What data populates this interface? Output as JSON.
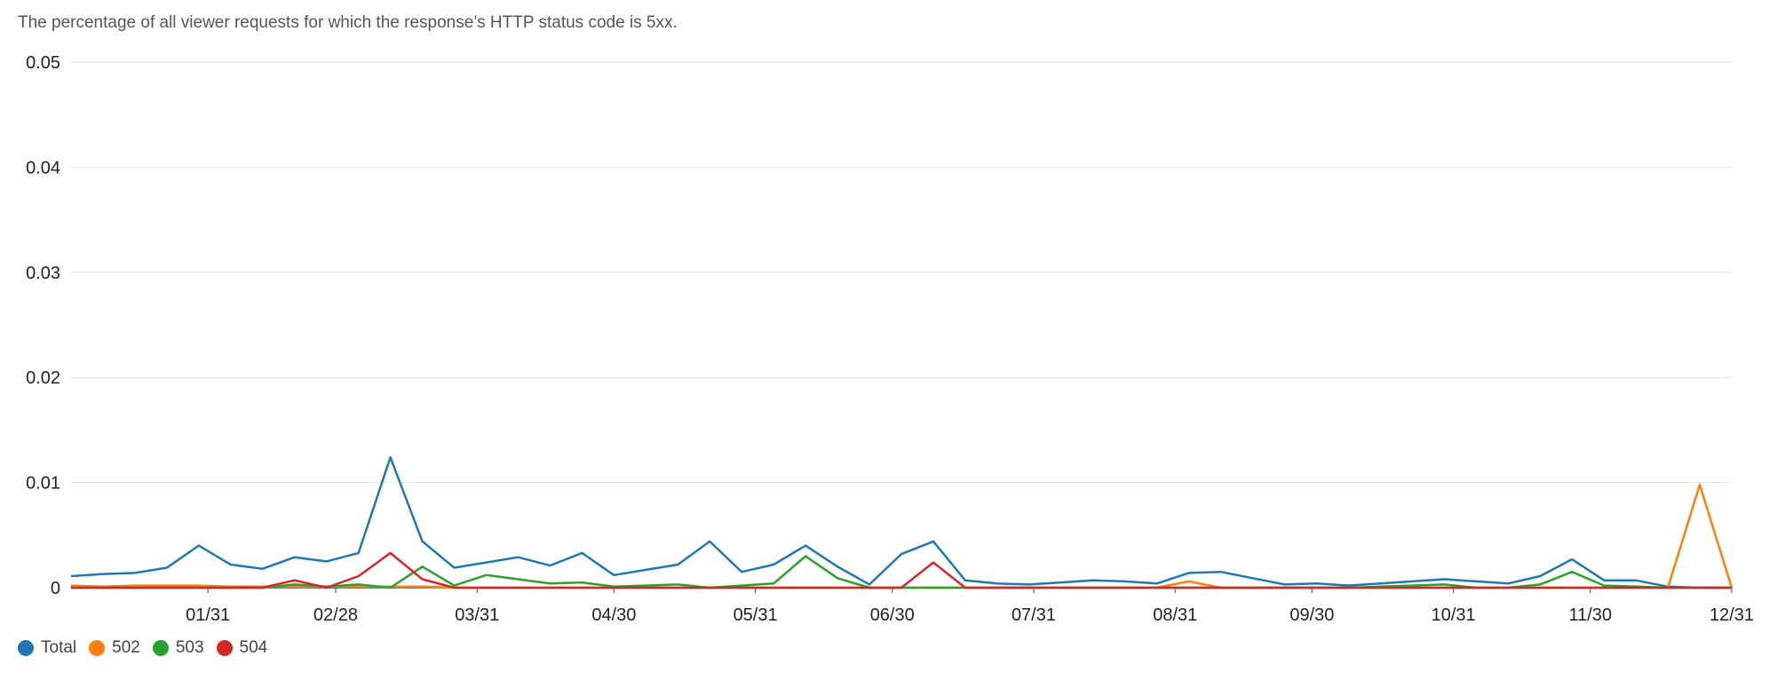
{
  "chart_data": {
    "type": "line",
    "subtitle": "The percentage of all viewer requests for which the response’s HTTP status code is 5xx.",
    "ylim": [
      0,
      0.05
    ],
    "y_ticks": [
      "0",
      "0.01",
      "0.02",
      "0.03",
      "0.04",
      "0.05"
    ],
    "x_ticks": [
      "01/31",
      "02/28",
      "03/31",
      "04/30",
      "05/31",
      "06/30",
      "07/31",
      "08/31",
      "09/30",
      "10/31",
      "11/30",
      "12/31"
    ],
    "x_range": [
      "01/01",
      "12/31"
    ],
    "grid": true,
    "legend_position": "bottom-left",
    "series": [
      {
        "name": "Total",
        "color": "#1f77b4",
        "x": [
          "01/01",
          "01/08",
          "01/15",
          "01/22",
          "01/29",
          "02/05",
          "02/12",
          "02/19",
          "02/26",
          "03/05",
          "03/12",
          "03/19",
          "03/26",
          "04/02",
          "04/09",
          "04/16",
          "04/23",
          "04/30",
          "05/07",
          "05/14",
          "05/21",
          "05/28",
          "06/04",
          "06/11",
          "06/18",
          "06/25",
          "07/02",
          "07/09",
          "07/16",
          "07/23",
          "07/30",
          "08/06",
          "08/13",
          "08/20",
          "08/27",
          "09/03",
          "09/10",
          "09/17",
          "09/24",
          "10/01",
          "10/08",
          "10/15",
          "10/22",
          "10/29",
          "11/05",
          "11/12",
          "11/19",
          "11/26",
          "12/03",
          "12/10",
          "12/17",
          "12/24",
          "12/31"
        ],
        "values": [
          0.0011,
          0.0013,
          0.0014,
          0.0019,
          0.004,
          0.0022,
          0.0018,
          0.0029,
          0.0025,
          0.0033,
          0.0124,
          0.0044,
          0.0019,
          0.0024,
          0.0029,
          0.0021,
          0.0033,
          0.0012,
          0.0017,
          0.0022,
          0.0044,
          0.0015,
          0.0022,
          0.004,
          0.002,
          0.0003,
          0.0032,
          0.0044,
          0.0007,
          0.0004,
          0.0003,
          0.0005,
          0.0007,
          0.0006,
          0.0004,
          0.0014,
          0.0015,
          0.0009,
          0.0003,
          0.0004,
          0.0002,
          0.0004,
          0.0006,
          0.0008,
          0.0006,
          0.0004,
          0.0011,
          0.0027,
          0.0007,
          0.0007,
          0.0001,
          0,
          0
        ]
      },
      {
        "name": "502",
        "color": "#ff7f0e",
        "x": [
          "01/01",
          "01/08",
          "01/15",
          "01/22",
          "01/29",
          "02/05",
          "02/12",
          "02/19",
          "02/26",
          "03/05",
          "03/12",
          "03/19",
          "03/26",
          "04/02",
          "04/09",
          "04/16",
          "04/23",
          "04/30",
          "05/07",
          "05/14",
          "05/21",
          "05/28",
          "06/04",
          "06/11",
          "06/18",
          "06/25",
          "07/02",
          "07/09",
          "07/16",
          "07/23",
          "07/30",
          "08/06",
          "08/13",
          "08/20",
          "08/27",
          "09/03",
          "09/10",
          "09/17",
          "09/24",
          "10/01",
          "10/08",
          "10/15",
          "10/22",
          "10/29",
          "11/05",
          "11/12",
          "11/19",
          "11/26",
          "12/03",
          "12/10",
          "12/17",
          "12/24",
          "12/31"
        ],
        "values": [
          0.0002,
          0.0001,
          0.0002,
          0.0002,
          0.0002,
          0.0001,
          0.0001,
          0.0001,
          0.0001,
          0.0001,
          0.0001,
          0.0001,
          0,
          0,
          0,
          0,
          0,
          0,
          0,
          0,
          0,
          0,
          0,
          0,
          0,
          0,
          0,
          0,
          0,
          0,
          0,
          0,
          0,
          0,
          0,
          0.0006,
          0,
          0,
          0,
          0,
          0,
          0,
          0,
          0,
          0,
          0,
          0,
          0,
          0,
          0,
          0,
          0.0098,
          0
        ]
      },
      {
        "name": "503",
        "color": "#2ca02c",
        "x": [
          "01/01",
          "01/08",
          "01/15",
          "01/22",
          "01/29",
          "02/05",
          "02/12",
          "02/19",
          "02/26",
          "03/05",
          "03/12",
          "03/19",
          "03/26",
          "04/02",
          "04/09",
          "04/16",
          "04/23",
          "04/30",
          "05/07",
          "05/14",
          "05/21",
          "05/28",
          "06/04",
          "06/11",
          "06/18",
          "06/25",
          "07/02",
          "07/09",
          "07/16",
          "07/23",
          "07/30",
          "08/06",
          "08/13",
          "08/20",
          "08/27",
          "09/03",
          "09/10",
          "09/17",
          "09/24",
          "10/01",
          "10/08",
          "10/15",
          "10/22",
          "10/29",
          "11/05",
          "11/12",
          "11/19",
          "11/26",
          "12/03",
          "12/10",
          "12/17",
          "12/24",
          "12/31"
        ],
        "values": [
          0,
          0,
          0,
          0,
          0,
          0,
          0,
          0.0003,
          0.0001,
          0.0003,
          0,
          0.002,
          0.0002,
          0.0012,
          0.0008,
          0.0004,
          0.0005,
          0.0001,
          0.0002,
          0.0003,
          0,
          0.0002,
          0.0004,
          0.003,
          0.0009,
          0,
          0,
          0,
          0,
          0,
          0,
          0,
          0,
          0,
          0,
          0,
          0,
          0,
          0,
          0,
          0,
          0.0001,
          0.0002,
          0.0003,
          0,
          0,
          0.0003,
          0.0015,
          0.0002,
          0.0001,
          0,
          0,
          0
        ]
      },
      {
        "name": "504",
        "color": "#d62728",
        "x": [
          "01/01",
          "01/08",
          "01/15",
          "01/22",
          "01/29",
          "02/05",
          "02/12",
          "02/19",
          "02/26",
          "03/05",
          "03/12",
          "03/19",
          "03/26",
          "04/02",
          "04/09",
          "04/16",
          "04/23",
          "04/30",
          "05/07",
          "05/14",
          "05/21",
          "05/28",
          "06/04",
          "06/11",
          "06/18",
          "06/25",
          "07/02",
          "07/09",
          "07/16",
          "07/23",
          "07/30",
          "08/06",
          "08/13",
          "08/20",
          "08/27",
          "09/03",
          "09/10",
          "09/17",
          "09/24",
          "10/01",
          "10/08",
          "10/15",
          "10/22",
          "10/29",
          "11/05",
          "11/12",
          "11/19",
          "11/26",
          "12/03",
          "12/10",
          "12/17",
          "12/24",
          "12/31"
        ],
        "values": [
          0,
          0,
          0,
          0,
          0,
          0,
          0,
          0.0007,
          0,
          0.0011,
          0.0033,
          0.0008,
          0,
          0,
          0,
          0,
          0,
          0,
          0,
          0,
          0,
          0,
          0,
          0,
          0,
          0,
          0,
          0.0024,
          0,
          0,
          0,
          0,
          0,
          0,
          0,
          0,
          0,
          0,
          0,
          0,
          0,
          0,
          0,
          0,
          0,
          0,
          0,
          0,
          0,
          0,
          0,
          0,
          0
        ]
      }
    ]
  }
}
